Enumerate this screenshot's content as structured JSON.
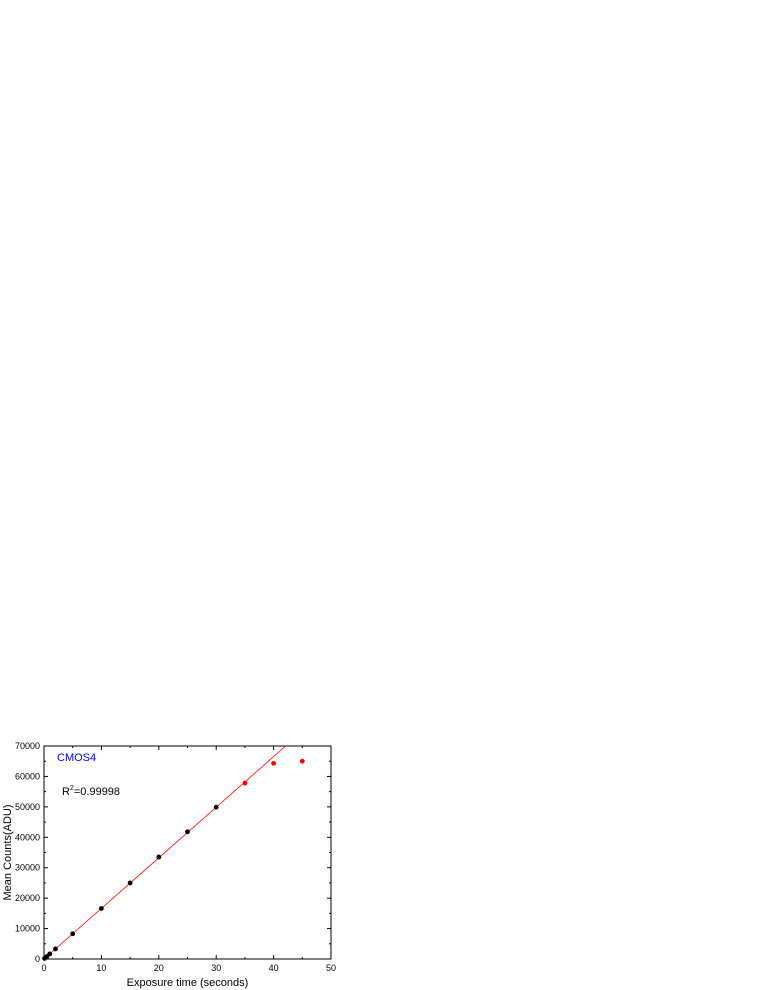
{
  "chart_data": {
    "type": "scatter",
    "title": "",
    "xlabel": "Exposure time (seconds)",
    "ylabel": "Mean Counts(ADU)",
    "xlim": [
      0,
      50
    ],
    "ylim": [
      0,
      70000
    ],
    "xticks": [
      0,
      10,
      20,
      30,
      40,
      50
    ],
    "yticks": [
      0,
      10000,
      20000,
      30000,
      40000,
      50000,
      60000,
      70000
    ],
    "grid": false,
    "annotations": {
      "label": "CMOS4",
      "label_color": "#0000ff",
      "r2_prefix": "R",
      "r2_sup": "2",
      "r2_value": "=0.99998"
    },
    "fit": {
      "type": "linear",
      "color": "#ff0000",
      "x": [
        0,
        42.1
      ],
      "y": [
        0,
        70000
      ]
    },
    "series": [
      {
        "color": "#000000",
        "x": [
          0.1,
          0.5,
          1,
          2,
          5,
          10,
          15,
          20,
          25,
          30
        ],
        "y": [
          170,
          830,
          1660,
          3300,
          8300,
          16600,
          25000,
          33500,
          41800,
          49900
        ]
      },
      {
        "color": "#ff0000",
        "x": [
          35,
          40,
          45
        ],
        "y": [
          57800,
          64300,
          65000
        ]
      }
    ]
  }
}
